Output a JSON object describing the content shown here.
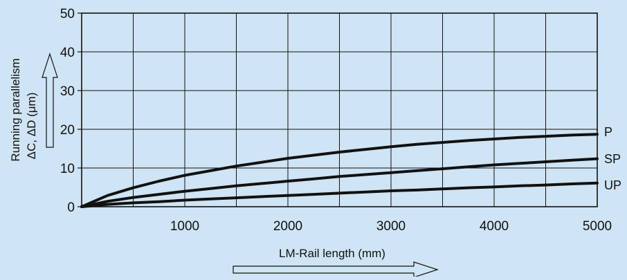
{
  "chart_data": {
    "type": "line",
    "title": "",
    "xlabel": "LM-Rail length (mm)",
    "ylabel_line1": "Running parallelism",
    "ylabel_line2": "ΔC,  ΔD  (μm)",
    "xlim": [
      0,
      5000
    ],
    "ylim": [
      0,
      50
    ],
    "x_ticks": [
      "1000",
      "2000",
      "3000",
      "4000",
      "5000"
    ],
    "y_ticks": [
      "0",
      "10",
      "20",
      "30",
      "40",
      "50"
    ],
    "grid": true,
    "x": [
      0,
      250,
      500,
      750,
      1000,
      1250,
      1500,
      1750,
      2000,
      2250,
      2500,
      2750,
      3000,
      3250,
      3500,
      3750,
      4000,
      4250,
      4500,
      4750,
      5000
    ],
    "series": [
      {
        "name": "P",
        "values": [
          0,
          2.9,
          4.9,
          6.6,
          8.1,
          9.3,
          10.5,
          11.5,
          12.5,
          13.3,
          14.1,
          14.8,
          15.5,
          16.1,
          16.6,
          17.1,
          17.5,
          17.9,
          18.2,
          18.5,
          18.7
        ]
      },
      {
        "name": "SP",
        "values": [
          0,
          1.4,
          2.4,
          3.2,
          4.0,
          4.7,
          5.4,
          6.0,
          6.6,
          7.2,
          7.8,
          8.3,
          8.8,
          9.3,
          9.8,
          10.3,
          10.8,
          11.2,
          11.6,
          12.0,
          12.4
        ]
      },
      {
        "name": "UP",
        "values": [
          0,
          0.6,
          1.0,
          1.3,
          1.7,
          2.0,
          2.3,
          2.6,
          2.9,
          3.2,
          3.5,
          3.8,
          4.1,
          4.3,
          4.6,
          4.9,
          5.1,
          5.4,
          5.6,
          5.9,
          6.1
        ]
      }
    ],
    "colors": {
      "background": "#cfe4f4",
      "ink": "#111111"
    }
  }
}
